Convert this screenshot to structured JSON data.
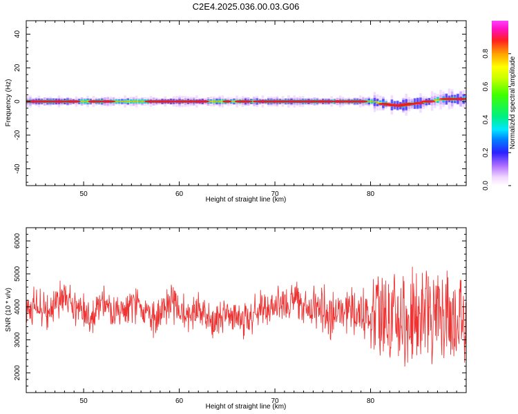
{
  "figure_title": "C2E4.2025.036.00.03.G06",
  "chart_data": [
    {
      "type": "heatmap",
      "title": "C2E4.2025.036.00.03.G06",
      "xlabel": "Height of straight line (km)",
      "ylabel": "Frequency (Hz)",
      "xlim": [
        44.0,
        90.0
      ],
      "ylim": [
        -50,
        48
      ],
      "xticks": [
        50,
        60,
        70,
        80
      ],
      "yticks": [
        -40,
        -20,
        0,
        20,
        40
      ],
      "colorbar": {
        "label": "Normalized spectral amplitude",
        "range": [
          0.0,
          1.0
        ],
        "ticks": [
          "0.0",
          "0.2",
          "0.4",
          "0.6",
          "0.8"
        ],
        "colormap": "gist_ncar"
      },
      "ridge": {
        "description_units": "frequency (Hz) of peak amplitude vs height (km)",
        "points": [
          [
            44,
            0
          ],
          [
            80,
            0
          ],
          [
            81,
            -1
          ],
          [
            82,
            -2
          ],
          [
            83,
            -2.5
          ],
          [
            84,
            -1.5
          ],
          [
            85,
            -1
          ],
          [
            86,
            0
          ],
          [
            87,
            1
          ],
          [
            88,
            1.5
          ],
          [
            90,
            1.5
          ]
        ]
      }
    },
    {
      "type": "line",
      "title": "",
      "xlabel": "Height of straight line (km)",
      "ylabel": "SNR (10 * v/v)",
      "xlim": [
        44.0,
        90.0
      ],
      "ylim": [
        1400,
        6400
      ],
      "xticks": [
        50,
        60,
        70,
        80
      ],
      "yticks": [
        2000,
        3000,
        4000,
        5000,
        6000
      ],
      "series": [
        {
          "color": "#ee3333",
          "x": [
            44,
            45,
            46,
            47,
            48,
            49,
            50,
            51,
            52,
            53,
            54,
            55,
            56,
            57,
            58,
            59,
            60,
            61,
            62,
            63,
            64,
            65,
            66,
            67,
            68,
            69,
            70,
            71,
            72,
            73,
            74,
            75,
            76,
            77,
            78,
            79,
            80,
            81,
            82,
            83,
            84,
            85,
            86,
            87,
            88,
            89,
            90
          ],
          "values": [
            3900,
            4100,
            3800,
            4200,
            4300,
            3900,
            4000,
            3700,
            4200,
            3800,
            3700,
            4000,
            4100,
            3600,
            3700,
            4200,
            3900,
            3700,
            3900,
            3600,
            3500,
            3800,
            3700,
            3500,
            3800,
            4000,
            4000,
            4100,
            4200,
            4100,
            3900,
            3900,
            3800,
            3900,
            3900,
            3800,
            3800,
            3800,
            3700,
            3600,
            3600,
            3600,
            3700,
            3800,
            3700,
            3600,
            3700
          ]
        }
      ]
    }
  ]
}
